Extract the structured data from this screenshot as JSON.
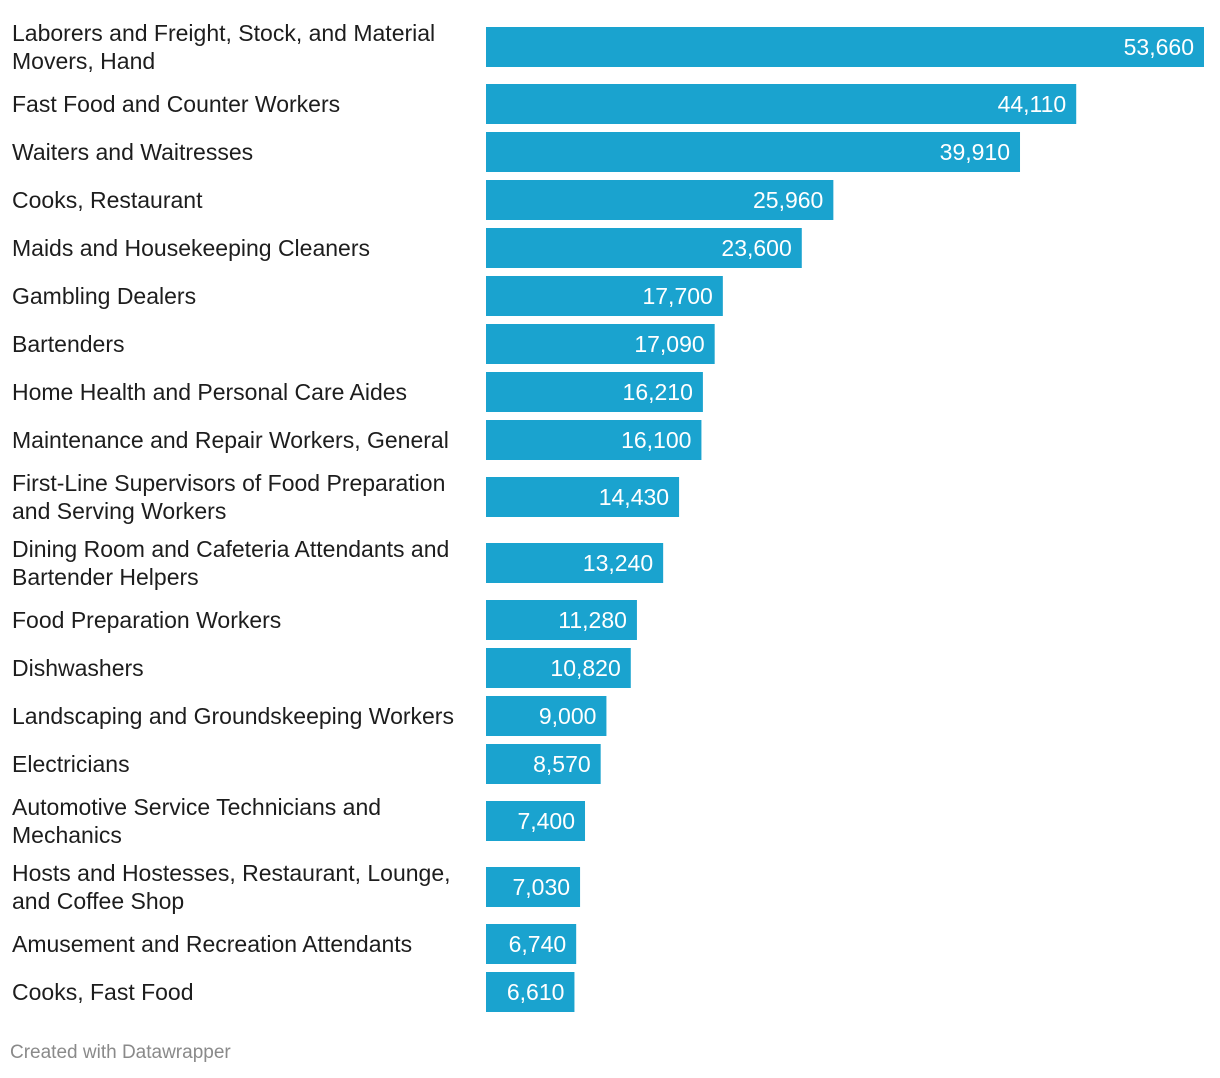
{
  "chart_data": {
    "type": "bar",
    "orientation": "horizontal",
    "categories": [
      "Laborers and Freight, Stock, and Material Movers, Hand",
      "Fast Food and Counter Workers",
      "Waiters and Waitresses",
      "Cooks, Restaurant",
      "Maids and Housekeeping Cleaners",
      "Gambling Dealers",
      "Bartenders",
      "Home Health and Personal Care Aides",
      "Maintenance and Repair Workers, General",
      "First-Line Supervisors of Food Preparation and Serving Workers",
      "Dining Room and Cafeteria Attendants and Bartender Helpers",
      "Food Preparation Workers",
      "Dishwashers",
      "Landscaping and Groundskeeping Workers",
      "Electricians",
      "Automotive Service Technicians and Mechanics",
      "Hosts and Hostesses, Restaurant, Lounge, and Coffee Shop",
      "Amusement and Recreation Attendants",
      "Cooks, Fast Food"
    ],
    "label_lines": [
      [
        "Laborers and Freight, Stock, and Material",
        "Movers, Hand"
      ],
      [
        "Fast Food and Counter Workers"
      ],
      [
        "Waiters and Waitresses"
      ],
      [
        "Cooks, Restaurant"
      ],
      [
        "Maids and Housekeeping Cleaners"
      ],
      [
        "Gambling Dealers"
      ],
      [
        "Bartenders"
      ],
      [
        "Home Health and Personal Care Aides"
      ],
      [
        "Maintenance and Repair Workers, General"
      ],
      [
        "First-Line Supervisors of Food Preparation",
        "and Serving Workers"
      ],
      [
        "Dining Room and Cafeteria Attendants and",
        "Bartender Helpers"
      ],
      [
        "Food Preparation Workers"
      ],
      [
        "Dishwashers"
      ],
      [
        "Landscaping and Groundskeeping Workers"
      ],
      [
        "Electricians"
      ],
      [
        "Automotive Service Technicians and",
        "Mechanics"
      ],
      [
        "Hosts and Hostesses, Restaurant, Lounge,",
        "and Coffee Shop"
      ],
      [
        "Amusement and Recreation Attendants"
      ],
      [
        "Cooks, Fast Food"
      ]
    ],
    "values": [
      53660,
      44110,
      39910,
      25960,
      23600,
      17700,
      17090,
      16210,
      16100,
      14430,
      13240,
      11280,
      10820,
      9000,
      8570,
      7400,
      7030,
      6740,
      6610
    ],
    "value_labels": [
      "53,660",
      "44,110",
      "39,910",
      "25,960",
      "23,600",
      "17,700",
      "17,090",
      "16,210",
      "16,100",
      "14,430",
      "13,240",
      "11,280",
      "10,820",
      "9,000",
      "8,570",
      "7,400",
      "7,030",
      "6,740",
      "6,610"
    ],
    "xlim": [
      0,
      53660
    ],
    "grid": false,
    "legend": "none",
    "bar_color": "#1aa3cf"
  },
  "footer": {
    "credit": "Created with Datawrapper"
  }
}
